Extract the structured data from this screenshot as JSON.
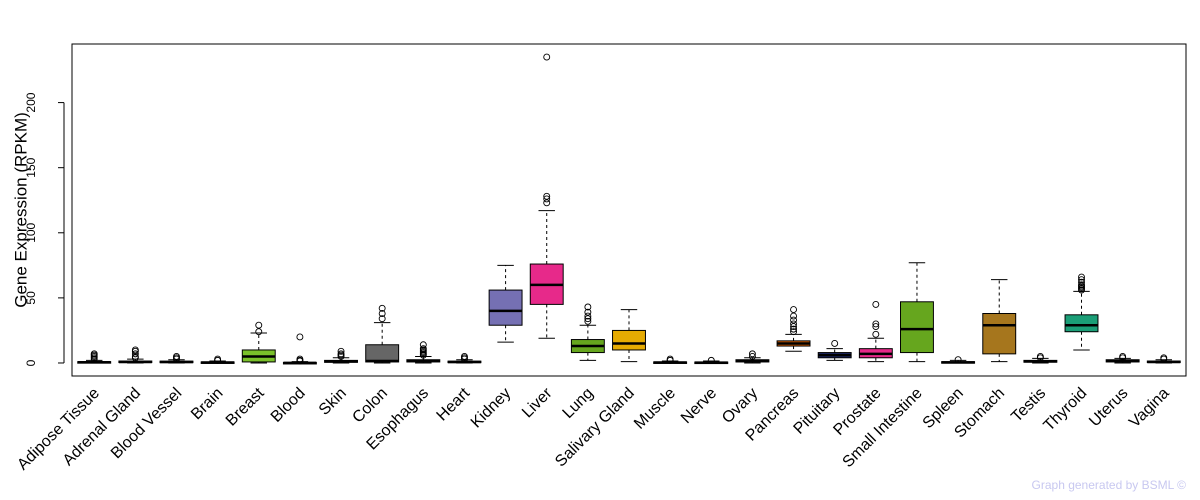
{
  "chart_data": {
    "type": "boxplot",
    "title": "",
    "xlabel": "",
    "ylabel": "Gene Expression (RPKM)",
    "ylim": [
      -10,
      245
    ],
    "yticks": [
      0,
      50,
      100,
      150,
      200
    ],
    "highlight_category": "Brain",
    "highlight_color": "#ff0000",
    "categories": [
      "Adipose Tissue",
      "Adrenal Gland",
      "Blood Vessel",
      "Brain",
      "Breast",
      "Blood",
      "Skin",
      "Colon",
      "Esophagus",
      "Heart",
      "Kidney",
      "Liver",
      "Lung",
      "Salivary Gland",
      "Muscle",
      "Nerve",
      "Ovary",
      "Pancreas",
      "Pituitary",
      "Prostate",
      "Small Intestine",
      "Spleen",
      "Stomach",
      "Testis",
      "Thyroid",
      "Uterus",
      "Vagina"
    ],
    "series": [
      {
        "name": "Adipose Tissue",
        "color": "#7fc97f",
        "min": 0,
        "q1": 0.3,
        "median": 0.6,
        "q3": 1.0,
        "max": 2,
        "outliers": [
          3,
          4,
          5,
          6,
          7
        ]
      },
      {
        "name": "Adrenal Gland",
        "color": "#beaed4",
        "min": 0,
        "q1": 0.4,
        "median": 0.8,
        "q3": 1.5,
        "max": 3,
        "outliers": [
          4,
          5,
          7,
          9,
          10
        ]
      },
      {
        "name": "Blood Vessel",
        "color": "#fdc086",
        "min": 0,
        "q1": 0.4,
        "median": 0.8,
        "q3": 1.4,
        "max": 2.5,
        "outliers": [
          3,
          4,
          5
        ]
      },
      {
        "name": "Brain",
        "color": "#386cb0",
        "min": 0,
        "q1": 0.2,
        "median": 0.4,
        "q3": 0.8,
        "max": 1.5,
        "outliers": [
          2,
          3
        ]
      },
      {
        "name": "Breast",
        "color": "#7ac12a",
        "min": 0,
        "q1": 0.8,
        "median": 5,
        "q3": 10,
        "max": 23,
        "outliers": [
          24,
          29
        ]
      },
      {
        "name": "Blood",
        "color": "#b07ab8",
        "min": 0,
        "q1": 0,
        "median": 0.1,
        "q3": 0.4,
        "max": 1,
        "outliers": [
          1.5,
          2,
          3,
          20
        ]
      },
      {
        "name": "Skin",
        "color": "#e08060",
        "min": 0,
        "q1": 0.5,
        "median": 1.2,
        "q3": 2.0,
        "max": 4,
        "outliers": [
          5,
          6,
          7,
          9
        ]
      },
      {
        "name": "Colon",
        "color": "#666666",
        "min": 0,
        "q1": 0.8,
        "median": 1.5,
        "q3": 14,
        "max": 31,
        "outliers": [
          34,
          38,
          42
        ]
      },
      {
        "name": "Esophagus",
        "color": "#7fc97f",
        "min": 0,
        "q1": 0.8,
        "median": 1.5,
        "q3": 2.5,
        "max": 5,
        "outliers": [
          6,
          7,
          8,
          9,
          10,
          11,
          14
        ]
      },
      {
        "name": "Heart",
        "color": "#beaed4",
        "min": 0,
        "q1": 0.4,
        "median": 0.8,
        "q3": 1.4,
        "max": 2.5,
        "outliers": [
          3,
          4,
          5
        ]
      },
      {
        "name": "Kidney",
        "color": "#7570b3",
        "min": 16,
        "q1": 29,
        "median": 40,
        "q3": 56,
        "max": 75,
        "outliers": []
      },
      {
        "name": "Liver",
        "color": "#e7298a",
        "min": 19,
        "q1": 45,
        "median": 60,
        "q3": 76,
        "max": 117,
        "outliers": [
          123,
          126,
          128,
          235
        ]
      },
      {
        "name": "Lung",
        "color": "#66a61e",
        "min": 2,
        "q1": 8,
        "median": 13,
        "q3": 18,
        "max": 29,
        "outliers": [
          32,
          34,
          36,
          39,
          43
        ]
      },
      {
        "name": "Salivary Gland",
        "color": "#e6ab02",
        "min": 1,
        "q1": 10,
        "median": 15,
        "q3": 25,
        "max": 41,
        "outliers": []
      },
      {
        "name": "Muscle",
        "color": "#a6761d",
        "min": 0,
        "q1": 0.2,
        "median": 0.4,
        "q3": 0.8,
        "max": 1.5,
        "outliers": [
          2,
          3
        ]
      },
      {
        "name": "Nerve",
        "color": "#666666",
        "min": 0,
        "q1": 0.1,
        "median": 0.3,
        "q3": 0.7,
        "max": 1.5,
        "outliers": [
          2
        ]
      },
      {
        "name": "Ovary",
        "color": "#1b9e77",
        "min": 0,
        "q1": 0.8,
        "median": 1.5,
        "q3": 2.5,
        "max": 4,
        "outliers": [
          5,
          7
        ]
      },
      {
        "name": "Pancreas",
        "color": "#d95f02",
        "min": 9,
        "q1": 13,
        "median": 15,
        "q3": 17,
        "max": 22,
        "outliers": [
          24,
          26,
          28,
          30,
          33,
          36,
          41
        ]
      },
      {
        "name": "Pituitary",
        "color": "#1f2a6b",
        "min": 2,
        "q1": 4,
        "median": 6,
        "q3": 8,
        "max": 11,
        "outliers": [
          15
        ]
      },
      {
        "name": "Prostate",
        "color": "#e7298a",
        "min": 1,
        "q1": 4,
        "median": 7,
        "q3": 11,
        "max": 19,
        "outliers": [
          22,
          28,
          30,
          45
        ]
      },
      {
        "name": "Small Intestine",
        "color": "#66a61e",
        "min": 1,
        "q1": 8,
        "median": 26,
        "q3": 47,
        "max": 77,
        "outliers": []
      },
      {
        "name": "Spleen",
        "color": "#e6ab02",
        "min": 0,
        "q1": 0.2,
        "median": 0.5,
        "q3": 1.0,
        "max": 2,
        "outliers": [
          2.5
        ]
      },
      {
        "name": "Stomach",
        "color": "#a6761d",
        "min": 1,
        "q1": 7,
        "median": 29,
        "q3": 38,
        "max": 64,
        "outliers": []
      },
      {
        "name": "Testis",
        "color": "#7f7f7f",
        "min": 0,
        "q1": 0.6,
        "median": 1.2,
        "q3": 2.0,
        "max": 3.5,
        "outliers": [
          4,
          5
        ]
      },
      {
        "name": "Thyroid",
        "color": "#1b9e77",
        "min": 10,
        "q1": 24,
        "median": 29,
        "q3": 37,
        "max": 55,
        "outliers": [
          56,
          57,
          58,
          59,
          60,
          62,
          64,
          66
        ]
      },
      {
        "name": "Uterus",
        "color": "#beaed4",
        "min": 0,
        "q1": 0.8,
        "median": 1.5,
        "q3": 2.5,
        "max": 3.5,
        "outliers": [
          4,
          5
        ]
      },
      {
        "name": "Vagina",
        "color": "#fdc086",
        "min": 0,
        "q1": 0.4,
        "median": 0.8,
        "q3": 1.5,
        "max": 2.5,
        "outliers": [
          3,
          4
        ]
      }
    ]
  },
  "watermark": "Graph generated by BSML ©"
}
